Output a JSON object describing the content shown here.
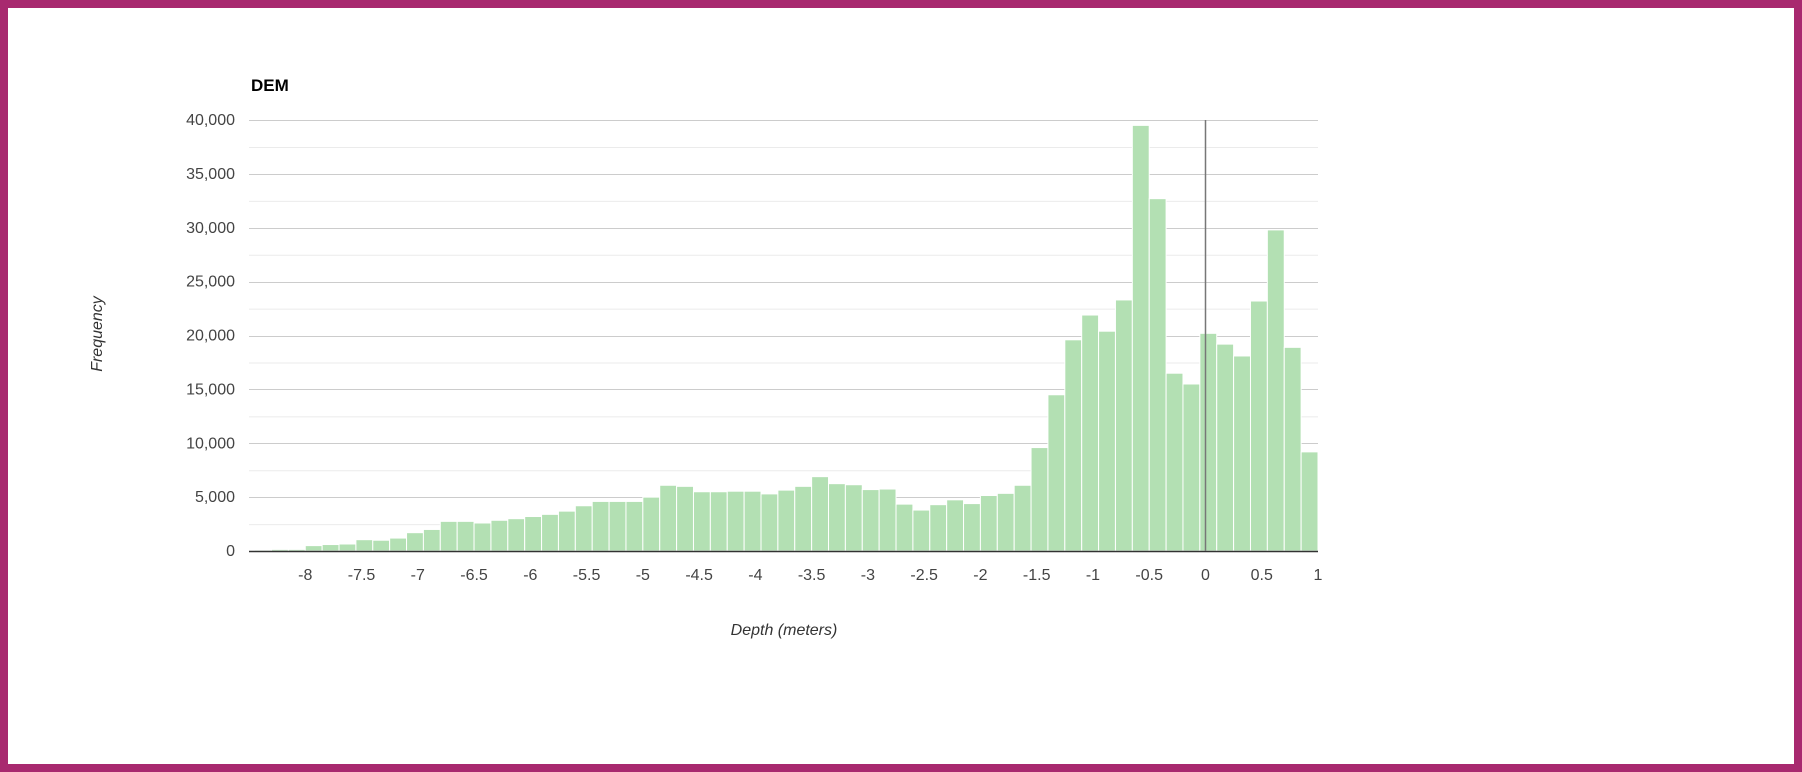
{
  "colors": {
    "border": "#a8296f",
    "bar": "#b3e0b3",
    "zero_line": "#777777"
  },
  "chart_data": {
    "type": "bar",
    "title": "DEM",
    "xlabel": "Depth (meters)",
    "ylabel": "Frequency",
    "xlim": [
      -8.5,
      1
    ],
    "ylim": [
      0,
      40000
    ],
    "grid": true,
    "bin_start": -8.45,
    "bin_width": 0.15,
    "values": [
      100,
      150,
      150,
      500,
      600,
      650,
      1050,
      1000,
      1200,
      1700,
      2000,
      2750,
      2750,
      2600,
      2850,
      3000,
      3200,
      3400,
      3700,
      4200,
      4600,
      4600,
      4600,
      5000,
      6100,
      6000,
      5500,
      5500,
      5550,
      5550,
      5300,
      5650,
      6000,
      6900,
      6250,
      6150,
      5700,
      5750,
      4350,
      3800,
      4300,
      4750,
      4400,
      5150,
      5350,
      6100,
      9600,
      14500,
      19600,
      21900,
      20400,
      23300,
      39500,
      32700,
      16500,
      15500,
      20200,
      19200,
      18100,
      23200,
      29800,
      18900,
      9200
    ],
    "x_ticks": [
      -8,
      -7.5,
      -7,
      -6.5,
      -6,
      -5.5,
      -5,
      -4.5,
      -4,
      -3.5,
      -3,
      -2.5,
      -2,
      -1.5,
      -1,
      -0.5,
      0,
      0.5,
      1
    ],
    "x_tick_labels": [
      "-8",
      "-7.5",
      "-7",
      "-6.5",
      "-6",
      "-5.5",
      "-5",
      "-4.5",
      "-4",
      "-3.5",
      "-3",
      "-2.5",
      "-2",
      "-1.5",
      "-1",
      "-0.5",
      "0",
      "0.5",
      "1"
    ],
    "y_ticks": [
      0,
      5000,
      10000,
      15000,
      20000,
      25000,
      30000,
      35000,
      40000
    ],
    "y_tick_labels": [
      "0",
      "5,000",
      "10,000",
      "15,000",
      "20,000",
      "25,000",
      "30,000",
      "35,000",
      "40,000"
    ]
  }
}
